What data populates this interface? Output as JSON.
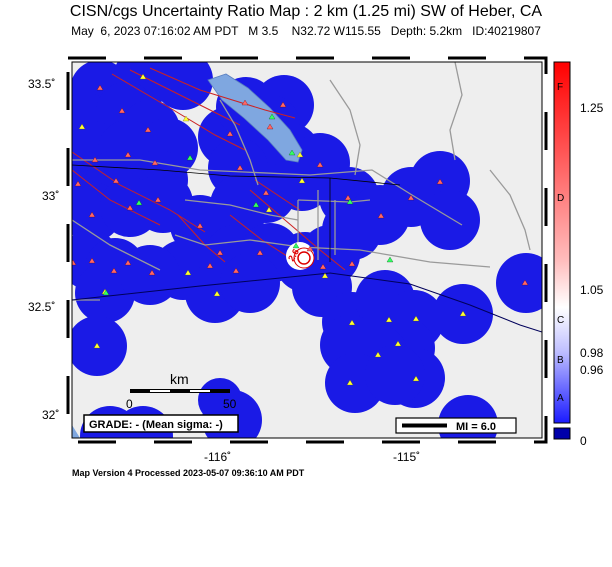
{
  "header": {
    "title": "CISN/cgs Uncertainty Ratio Map : 2 km (1.25 mi) SW of Heber, CA",
    "subtitle": "May  6, 2023 07:16:02 AM PDT   M 3.5    N32.72 W115.55   Depth: 5.2km   ID:40219807"
  },
  "axes": {
    "y_ticks": [
      "33.5˚",
      "33˚",
      "32.5˚",
      "32˚"
    ],
    "x_ticks": [
      "-116˚",
      "-115˚"
    ]
  },
  "scale_bar": {
    "unit": "km",
    "start": "0",
    "end": "50"
  },
  "grade_box": {
    "text": "GRADE: - (Mean sigma: -)"
  },
  "mi_legend": {
    "text": "MI = 6.0"
  },
  "colorbar": {
    "letters": [
      "F",
      "D",
      "C",
      "B",
      "A"
    ],
    "values": [
      "1.25",
      "1.05",
      "0.98",
      "0.96",
      "0"
    ],
    "colors": {
      "top": "#ff0000",
      "middle": "#ffffff",
      "bottom": "#0000ff",
      "zero": "#0000aa"
    }
  },
  "map": {
    "colors": {
      "background": "#eeeeee",
      "station_blob": "#1a1ae6",
      "lake": "#7fa7e0",
      "fault": "#cc2222",
      "road": "#9a9a9a",
      "county_line": "#000000",
      "border": "#00005a"
    },
    "station_types": {
      "seismic": "yellow triangle",
      "strong_motion": "red triangle",
      "broadband": "green triangle"
    },
    "epicenter_label": "2.6"
  },
  "footer": {
    "text": "Map Version 4 Processed 2023-05-07 09:36:10 AM PDT"
  }
}
